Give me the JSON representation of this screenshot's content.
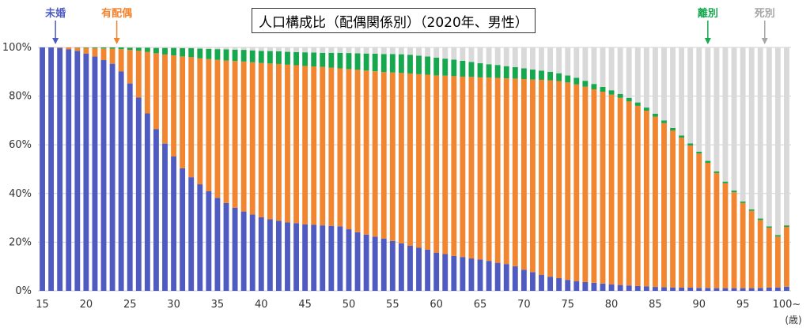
{
  "chart_data": {
    "type": "bar",
    "stacked": true,
    "title": "人口構成比（配偶関係別）（2020年、男性）",
    "xlabel": "(歳)",
    "ylabel": "",
    "ylim": [
      0,
      100
    ],
    "y_tick_values": [
      0,
      20,
      40,
      60,
      80,
      100
    ],
    "y_tick_labels": [
      "0%",
      "20%",
      "40%",
      "60%",
      "80%",
      "100%"
    ],
    "x_tick_labels": [
      "15",
      "20",
      "25",
      "30",
      "35",
      "40",
      "45",
      "50",
      "55",
      "60",
      "65",
      "70",
      "75",
      "80",
      "85",
      "90",
      "95",
      "100~"
    ],
    "grid": true,
    "legend": "annotations above plot with arrows",
    "categories": [
      "15",
      "16",
      "17",
      "18",
      "19",
      "20",
      "21",
      "22",
      "23",
      "24",
      "25",
      "26",
      "27",
      "28",
      "29",
      "30",
      "31",
      "32",
      "33",
      "34",
      "35",
      "36",
      "37",
      "38",
      "39",
      "40",
      "41",
      "42",
      "43",
      "44",
      "45",
      "46",
      "47",
      "48",
      "49",
      "50",
      "51",
      "52",
      "53",
      "54",
      "55",
      "56",
      "57",
      "58",
      "59",
      "60",
      "61",
      "62",
      "63",
      "64",
      "65",
      "66",
      "67",
      "68",
      "69",
      "70",
      "71",
      "72",
      "73",
      "74",
      "75",
      "76",
      "77",
      "78",
      "79",
      "80",
      "81",
      "82",
      "83",
      "84",
      "85",
      "86",
      "87",
      "88",
      "89",
      "90",
      "91",
      "92",
      "93",
      "94",
      "95",
      "96",
      "97",
      "98",
      "99",
      "100~"
    ],
    "series": [
      {
        "name": "未婚",
        "color": "#4F5BC0",
        "values": [
          100,
          100,
          99.8,
          99.2,
          98.6,
          97.5,
          96.3,
          94.8,
          93.3,
          90.1,
          85.2,
          79.4,
          72.9,
          66.4,
          60.5,
          55.2,
          50.4,
          46.7,
          43.8,
          40.9,
          38.2,
          36.1,
          34.1,
          32.6,
          31.4,
          30.2,
          29.4,
          28.8,
          28.1,
          27.8,
          27.3,
          27.1,
          26.9,
          26.7,
          26.5,
          25.3,
          24.1,
          23.1,
          22.3,
          21.5,
          20.5,
          19.5,
          18.5,
          17.7,
          16.9,
          15.7,
          15.1,
          14.3,
          13.9,
          13.3,
          12.9,
          12.3,
          11.5,
          11,
          10.1,
          8.7,
          7.7,
          6.6,
          5.8,
          5.2,
          4.5,
          4,
          3.6,
          3.3,
          3,
          2.7,
          2.4,
          2.2,
          2,
          1.8,
          1.6,
          1.5,
          1.4,
          1.3,
          1.3,
          1.2,
          1.2,
          1.1,
          1.1,
          1.1,
          1.1,
          1.1,
          1.2,
          1.3,
          1.4,
          1.7
        ]
      },
      {
        "name": "有配偶",
        "color": "#F28530",
        "values": [
          0,
          0,
          0.2,
          0.8,
          1.3,
          2.3,
          3.4,
          4.8,
          6.2,
          9.2,
          13.8,
          19.2,
          25.3,
          31.2,
          36.6,
          41.5,
          45.9,
          49.3,
          51.7,
          54.3,
          56.7,
          58.5,
          60.3,
          61.6,
          62.5,
          63.4,
          64,
          64.4,
          64.8,
          64.9,
          65.1,
          65.1,
          65.1,
          65,
          64.9,
          65.8,
          66.7,
          67.4,
          67.9,
          68.4,
          69.2,
          70,
          70.8,
          71.3,
          71.9,
          72.8,
          73.3,
          73.9,
          74.1,
          74.6,
          74.8,
          75.3,
          76,
          76.3,
          77.1,
          78.3,
          79.1,
          80.1,
          80.7,
          81,
          81.1,
          80.8,
          80.3,
          79.5,
          78.8,
          77.9,
          76.9,
          75.6,
          74,
          72.2,
          70,
          67.4,
          64.5,
          61.6,
          58.4,
          55.2,
          51.4,
          47.3,
          43.1,
          39.4,
          35,
          31.8,
          27.9,
          24.6,
          20.9,
          24.6
        ]
      },
      {
        "name": "離別",
        "color": "#16A84E",
        "values": [
          0,
          0,
          0,
          0,
          0.1,
          0.2,
          0.3,
          0.4,
          0.5,
          0.7,
          0.9,
          1.3,
          1.7,
          2.2,
          2.7,
          3.1,
          3.4,
          3.7,
          4,
          4.2,
          4.4,
          4.6,
          4.7,
          4.8,
          4.9,
          5,
          5.1,
          5.2,
          5.3,
          5.4,
          5.6,
          5.7,
          5.8,
          6.1,
          6.4,
          6.6,
          6.8,
          7,
          7.2,
          7.4,
          7.6,
          7.7,
          7.7,
          7.6,
          7.5,
          7.3,
          7,
          6.8,
          6.5,
          6.1,
          5.8,
          5.5,
          5.3,
          5,
          4.7,
          4.4,
          4.1,
          3.8,
          3.5,
          3.2,
          2.9,
          2.7,
          2.4,
          2.2,
          2,
          1.8,
          1.6,
          1.5,
          1.4,
          1.3,
          1.2,
          1.1,
          1,
          0.9,
          0.9,
          0.8,
          0.8,
          0.7,
          0.7,
          0.7,
          0.6,
          0.6,
          0.6,
          0.6,
          0.6,
          0.6
        ]
      },
      {
        "name": "死別",
        "color": "#D9D9D9",
        "values": [
          0,
          0,
          0,
          0,
          0,
          0,
          0,
          0,
          0,
          0,
          0.1,
          0.1,
          0.1,
          0.2,
          0.2,
          0.2,
          0.3,
          0.3,
          0.5,
          0.6,
          0.7,
          0.8,
          0.9,
          1,
          1.2,
          1.4,
          1.5,
          1.6,
          1.8,
          1.9,
          2,
          2.1,
          2.2,
          2.2,
          2.2,
          2.3,
          2.4,
          2.5,
          2.6,
          2.7,
          2.7,
          2.8,
          3,
          3.4,
          3.7,
          4.2,
          4.6,
          5,
          5.5,
          6,
          6.5,
          6.9,
          7.2,
          7.7,
          8.1,
          8.6,
          9.1,
          9.5,
          10,
          10.6,
          11.5,
          12.5,
          13.7,
          15,
          16.2,
          17.6,
          19.1,
          20.7,
          22.6,
          24.7,
          27.2,
          30,
          33.1,
          36.2,
          39.4,
          42.8,
          46.6,
          50.9,
          55.1,
          58.8,
          63.3,
          66.5,
          70.3,
          73.5,
          77.1,
          73.1
        ]
      }
    ]
  },
  "annotations": [
    {
      "label": "未婚",
      "age": 16.5,
      "color": "#4F5BC0"
    },
    {
      "label": "有配偶",
      "age": 23.5,
      "color": "#F28530"
    },
    {
      "label": "離別",
      "age": 91,
      "color": "#16A84E"
    },
    {
      "label": "死別",
      "age": 97.5,
      "color": "#A6A6A6"
    }
  ]
}
